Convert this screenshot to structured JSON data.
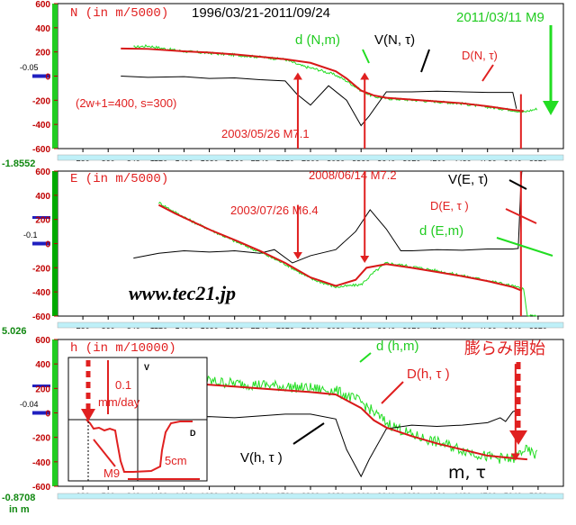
{
  "header": {
    "date_range": "1996/03/21-2011/09/24",
    "quake_label": "2011/03/11 M9",
    "params": "(2w+1=400, s=300)",
    "url": "www.tec21.jp",
    "x_axis_unit": "in m"
  },
  "side_values": [
    "-1.8552",
    "5.026",
    "-0.8708"
  ],
  "colors": {
    "d_series": "#22dd22",
    "D_series": "#d81818",
    "V_series": "#000000",
    "accent_red": "#e02020"
  },
  "chart_data": [
    {
      "type": "line",
      "ylabel": "N (in m/5000)",
      "ylim": [
        -600,
        600
      ],
      "yticks": [
        "600",
        "400",
        "200",
        "0",
        "-200",
        "-400",
        "-600"
      ],
      "small_label": "-0.05",
      "x_ticks": [
        "280",
        "560",
        "840",
        "1120",
        "1400",
        "1680",
        "1960",
        "2240",
        "2520",
        "2800",
        "3080",
        "3360",
        "3640",
        "3920",
        "4200",
        "4480",
        "4760",
        "5040",
        "5320"
      ],
      "xlim": [
        0,
        5600
      ],
      "series_labels": [
        "d (N,m)",
        "V(N, τ)",
        "D(N, τ)"
      ],
      "annotations": [
        "2003/05/26 M7.1"
      ],
      "d": {
        "x": [
          840,
          1000,
          1200,
          1400,
          1680,
          1960,
          2240,
          2520,
          2700,
          2900,
          3080,
          3200,
          3360,
          3500,
          3640,
          3920,
          4200,
          4480,
          4760,
          5040,
          5160,
          5200,
          5320
        ],
        "y": [
          240,
          250,
          225,
          205,
          190,
          175,
          158,
          138,
          85,
          50,
          8,
          -40,
          -120,
          -170,
          -185,
          -198,
          -212,
          -228,
          -256,
          -282,
          -300,
          -290,
          -270
        ]
      },
      "D": {
        "x": [
          700,
          1000,
          1400,
          1680,
          1960,
          2240,
          2520,
          2800,
          3080,
          3200,
          3360,
          3500,
          3640,
          3920,
          4200,
          4480,
          4760,
          5040,
          5160
        ],
        "y": [
          228,
          225,
          205,
          195,
          180,
          160,
          140,
          110,
          40,
          -20,
          -120,
          -160,
          -180,
          -195,
          -210,
          -225,
          -250,
          -280,
          -290
        ]
      },
      "V": {
        "x": [
          700,
          1000,
          1400,
          1680,
          1960,
          2240,
          2520,
          2650,
          2800,
          3000,
          3200,
          3360,
          3450,
          3640,
          3920,
          4200,
          4480,
          4760,
          5040,
          5080
        ],
        "y": [
          0,
          -10,
          -5,
          -20,
          -15,
          -30,
          -40,
          -150,
          -240,
          -80,
          -200,
          -410,
          -330,
          -130,
          -130,
          -125,
          -130,
          -135,
          -135,
          -270
        ]
      },
      "markers": [
        {
          "type": "arrow",
          "x": 2660,
          "y_from": -600,
          "y_to": 30
        },
        {
          "type": "arrow",
          "x": 3400,
          "y_from": -600,
          "y_to": 30
        },
        {
          "type": "line",
          "x": 5130,
          "y_from": -600,
          "y_to": -150
        }
      ]
    },
    {
      "type": "line",
      "ylabel": "E (in m/5000)",
      "ylim": [
        -600,
        600
      ],
      "yticks": [
        "600",
        "400",
        "200",
        "0",
        "-200",
        "-400",
        "-600"
      ],
      "small_label": "-0.1",
      "x_ticks": [
        "280",
        "560",
        "840",
        "1120",
        "1400",
        "1680",
        "1960",
        "2240",
        "2520",
        "2800",
        "3080",
        "3360",
        "3640",
        "3920",
        "4200",
        "4480",
        "4760",
        "5040",
        "5320"
      ],
      "xlim": [
        0,
        5600
      ],
      "series_labels": [
        "V(E, τ)",
        "D(E, τ )",
        "d (E,m)"
      ],
      "annotations": [
        "2003/07/26 M6.4",
        "2008/06/14 M7.2"
      ],
      "d": {
        "x": [
          1120,
          1300,
          1500,
          1700,
          1960,
          2240,
          2520,
          2800,
          3080,
          3360,
          3500,
          3640,
          3920,
          4200,
          4480,
          4760,
          5040,
          5160,
          5200,
          5320
        ],
        "y": [
          340,
          260,
          180,
          110,
          20,
          -70,
          -170,
          -290,
          -360,
          -340,
          -240,
          -160,
          -190,
          -225,
          -265,
          -305,
          -350,
          -380,
          -600,
          -600
        ]
      },
      "D": {
        "x": [
          1120,
          1300,
          1500,
          1700,
          1960,
          2240,
          2520,
          2800,
          3080,
          3300,
          3420,
          3640,
          3920,
          4200,
          4480,
          4760,
          5040,
          5140
        ],
        "y": [
          320,
          250,
          180,
          110,
          30,
          -60,
          -160,
          -280,
          -350,
          -300,
          -200,
          -170,
          -200,
          -235,
          -270,
          -310,
          -360,
          -390
        ]
      },
      "V": {
        "x": [
          840,
          1120,
          1400,
          1680,
          1960,
          2240,
          2400,
          2600,
          2800,
          3080,
          3300,
          3460,
          3640,
          3800,
          3920,
          4200,
          4480,
          4760,
          5040,
          5100,
          5130,
          5140
        ],
        "y": [
          -120,
          -80,
          -60,
          -70,
          -60,
          -80,
          -50,
          -160,
          -100,
          -50,
          100,
          280,
          120,
          -60,
          -60,
          -50,
          -55,
          -45,
          -45,
          -40,
          500,
          600
        ]
      },
      "markers": [
        {
          "type": "arrow",
          "x": 2660,
          "y_from": 320,
          "y_to": -130
        },
        {
          "type": "arrow",
          "x": 3400,
          "y_from": 600,
          "y_to": -160
        },
        {
          "type": "line",
          "x": 5130,
          "y_from": -600,
          "y_to": 600
        }
      ]
    },
    {
      "type": "line",
      "ylabel": "h (in m/10000)",
      "ylim": [
        -600,
        600
      ],
      "yticks": [
        "600",
        "400",
        "200",
        "0",
        "-200",
        "-400",
        "-600"
      ],
      "small_label": "-0.04",
      "x_ticks": [
        "280",
        "560",
        "840",
        "1120",
        "1400",
        "1680",
        "1960",
        "2240",
        "2520",
        "2800",
        "3080",
        "3360",
        "3640",
        "3920",
        "4200",
        "4480",
        "4760",
        "5040",
        "5320"
      ],
      "xlim": [
        0,
        5600
      ],
      "series_labels": [
        "d (h,m)",
        "D(h, τ )",
        "V(h, τ )",
        "m, τ",
        "膨らみ開始"
      ],
      "d": {
        "x": [
          1120,
          1400,
          1680,
          1960,
          2240,
          2520,
          2800,
          3080,
          3360,
          3640,
          3920,
          4200,
          4480,
          4760,
          5040,
          5160,
          5320
        ],
        "y": [
          300,
          280,
          260,
          240,
          230,
          215,
          200,
          180,
          90,
          -80,
          -180,
          -240,
          -300,
          -360,
          -380,
          -300,
          -350
        ]
      },
      "D": {
        "x": [
          1120,
          1400,
          1680,
          1960,
          2240,
          2520,
          2800,
          3080,
          3360,
          3500,
          3640,
          3920,
          4200,
          4480,
          4760,
          5040,
          5200
        ],
        "y": [
          260,
          245,
          230,
          215,
          200,
          185,
          170,
          150,
          40,
          -60,
          -120,
          -190,
          -250,
          -300,
          -350,
          -370,
          -380
        ]
      },
      "V": {
        "x": [
          1120,
          1400,
          1680,
          1960,
          2240,
          2520,
          2800,
          3080,
          3200,
          3360,
          3450,
          3640,
          3920,
          4200,
          4480,
          4760,
          4900,
          4960,
          5040,
          5080
        ],
        "y": [
          -20,
          -40,
          -30,
          -40,
          -25,
          -10,
          -10,
          -50,
          -300,
          -520,
          -380,
          -130,
          -100,
          -110,
          -100,
          -80,
          -40,
          -70,
          10,
          20
        ]
      },
      "markers": [
        {
          "type": "arrow",
          "x": 5070,
          "y_from": 400,
          "y_to": -390
        }
      ],
      "inset": {
        "rate_label": "0.1",
        "rate_unit": "mm/day",
        "quake_label": "M9",
        "scale_label": "5cm",
        "v_label": "V",
        "d_label": "D"
      }
    }
  ]
}
